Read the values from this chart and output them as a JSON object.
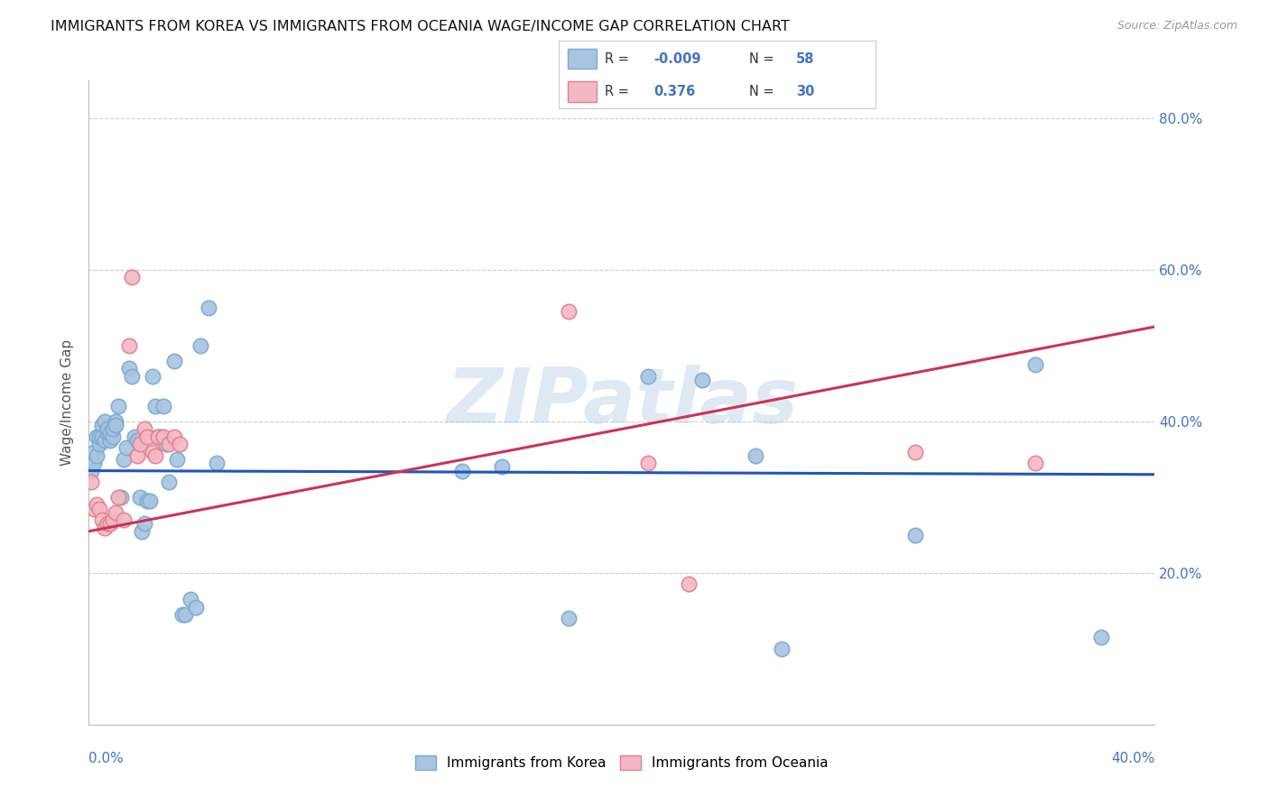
{
  "title": "IMMIGRANTS FROM KOREA VS IMMIGRANTS FROM OCEANIA WAGE/INCOME GAP CORRELATION CHART",
  "source": "Source: ZipAtlas.com",
  "ylabel": "Wage/Income Gap",
  "xmin": 0.0,
  "xmax": 0.4,
  "ymin": 0.0,
  "ymax": 0.85,
  "yticks": [
    0.2,
    0.4,
    0.6,
    0.8
  ],
  "ytick_labels": [
    "20.0%",
    "40.0%",
    "60.0%",
    "80.0%"
  ],
  "korea_color": "#a8c4e0",
  "korea_edge": "#7aaacf",
  "oceania_color": "#f4b8c4",
  "oceania_edge": "#e08090",
  "korea_line_color": "#2255bb",
  "oceania_line_color": "#cc3355",
  "korea_R": -0.009,
  "korea_N": 58,
  "oceania_R": 0.376,
  "oceania_N": 30,
  "korea_x": [
    0.001,
    0.002,
    0.002,
    0.003,
    0.003,
    0.004,
    0.004,
    0.005,
    0.005,
    0.006,
    0.006,
    0.007,
    0.007,
    0.008,
    0.008,
    0.009,
    0.009,
    0.01,
    0.01,
    0.011,
    0.012,
    0.013,
    0.014,
    0.015,
    0.016,
    0.017,
    0.018,
    0.019,
    0.02,
    0.021,
    0.022,
    0.023,
    0.024,
    0.025,
    0.026,
    0.027,
    0.028,
    0.029,
    0.03,
    0.032,
    0.033,
    0.035,
    0.036,
    0.038,
    0.04,
    0.042,
    0.045,
    0.048,
    0.14,
    0.155,
    0.18,
    0.21,
    0.23,
    0.25,
    0.26,
    0.31,
    0.355,
    0.38
  ],
  "korea_y": [
    0.335,
    0.345,
    0.36,
    0.38,
    0.355,
    0.37,
    0.38,
    0.395,
    0.38,
    0.375,
    0.4,
    0.385,
    0.39,
    0.375,
    0.385,
    0.38,
    0.39,
    0.4,
    0.395,
    0.42,
    0.3,
    0.35,
    0.365,
    0.47,
    0.46,
    0.38,
    0.375,
    0.3,
    0.255,
    0.265,
    0.295,
    0.295,
    0.46,
    0.42,
    0.38,
    0.38,
    0.42,
    0.37,
    0.32,
    0.48,
    0.35,
    0.145,
    0.145,
    0.165,
    0.155,
    0.5,
    0.55,
    0.345,
    0.335,
    0.34,
    0.14,
    0.46,
    0.455,
    0.355,
    0.1,
    0.25,
    0.475,
    0.115
  ],
  "oceania_x": [
    0.001,
    0.002,
    0.003,
    0.004,
    0.005,
    0.006,
    0.007,
    0.008,
    0.009,
    0.01,
    0.011,
    0.013,
    0.015,
    0.016,
    0.018,
    0.019,
    0.021,
    0.022,
    0.024,
    0.025,
    0.026,
    0.028,
    0.03,
    0.032,
    0.034,
    0.18,
    0.21,
    0.225,
    0.31,
    0.355
  ],
  "oceania_y": [
    0.32,
    0.285,
    0.29,
    0.285,
    0.27,
    0.26,
    0.265,
    0.265,
    0.27,
    0.28,
    0.3,
    0.27,
    0.5,
    0.59,
    0.355,
    0.37,
    0.39,
    0.38,
    0.36,
    0.355,
    0.38,
    0.38,
    0.37,
    0.38,
    0.37,
    0.545,
    0.345,
    0.185,
    0.36,
    0.345
  ],
  "watermark": "ZIPatlas",
  "legend_color": "#4472c4",
  "title_fontsize": 11.5,
  "axis_label_color": "#4472c4",
  "tick_color": "#4472c4",
  "korea_line_y0": 0.335,
  "korea_line_y1": 0.33,
  "oceania_line_y0": 0.255,
  "oceania_line_y1": 0.525
}
